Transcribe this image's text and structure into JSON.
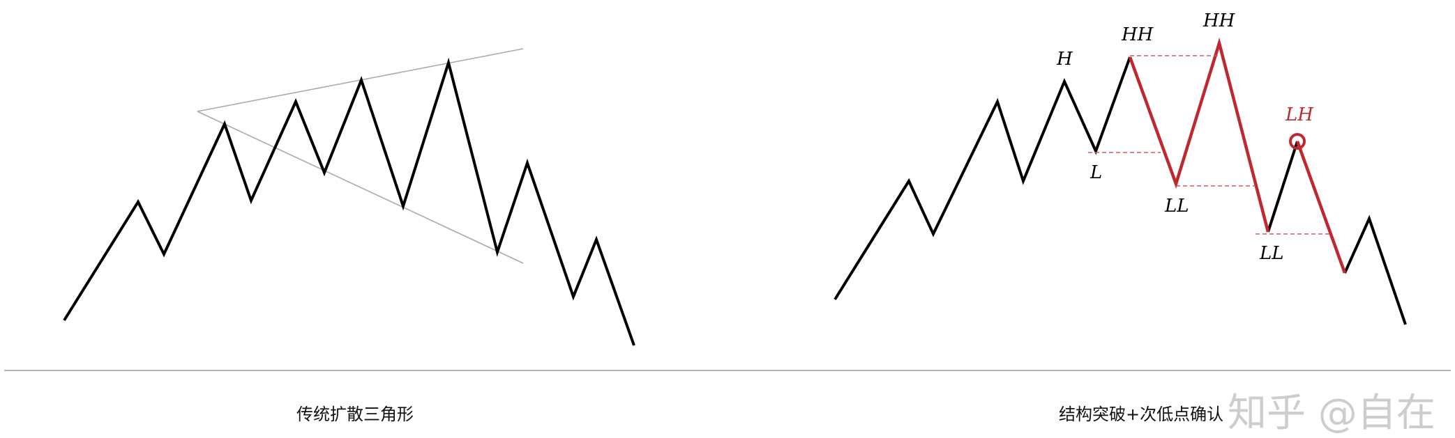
{
  "left_panel": {
    "caption": "传统扩散三角形"
  },
  "right_panel": {
    "caption": "结构突破+次低点确认",
    "labels": {
      "h": "H",
      "hh1": "HH",
      "hh2": "HH",
      "l": "L",
      "ll1": "LL",
      "ll2": "LL",
      "lh": "LH"
    }
  },
  "colors": {
    "line": "#000000",
    "accent": "#c0282d",
    "trendline": "#aaaaaa",
    "separator": "#b5b5b5"
  },
  "watermark": "知乎 @自在"
}
